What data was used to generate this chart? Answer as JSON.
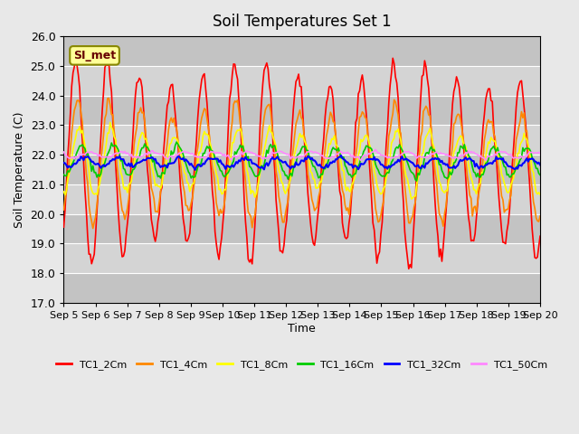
{
  "title": "Soil Temperatures Set 1",
  "xlabel": "Time",
  "ylabel": "Soil Temperature (C)",
  "ylim": [
    17.0,
    26.0
  ],
  "yticks": [
    17.0,
    18.0,
    19.0,
    20.0,
    21.0,
    22.0,
    23.0,
    24.0,
    25.0,
    26.0
  ],
  "n_days": 15,
  "points_per_day": 24,
  "xtick_labels": [
    "Sep 5",
    "Sep 6",
    "Sep 7",
    "Sep 8",
    "Sep 9",
    "Sep 10",
    "Sep 11",
    "Sep 12",
    "Sep 13",
    "Sep 14",
    "Sep 15",
    "Sep 16",
    "Sep 17",
    "Sep 18",
    "Sep 19",
    "Sep 20"
  ],
  "series_names": [
    "TC1_2Cm",
    "TC1_4Cm",
    "TC1_8Cm",
    "TC1_16Cm",
    "TC1_32Cm",
    "TC1_50Cm"
  ],
  "series_colors": [
    "#ff0000",
    "#ff8800",
    "#ffff00",
    "#00cc00",
    "#0000ff",
    "#ff88ff"
  ],
  "series_linewidths": [
    1.2,
    1.2,
    1.2,
    1.2,
    1.5,
    1.2
  ],
  "bg_color": "#e8e8e8",
  "plot_bg_color": "#d0d0d0",
  "label_box_text": "SI_met",
  "label_box_color": "#ffff99",
  "label_box_border": "#888800",
  "legend_ncol": 6
}
